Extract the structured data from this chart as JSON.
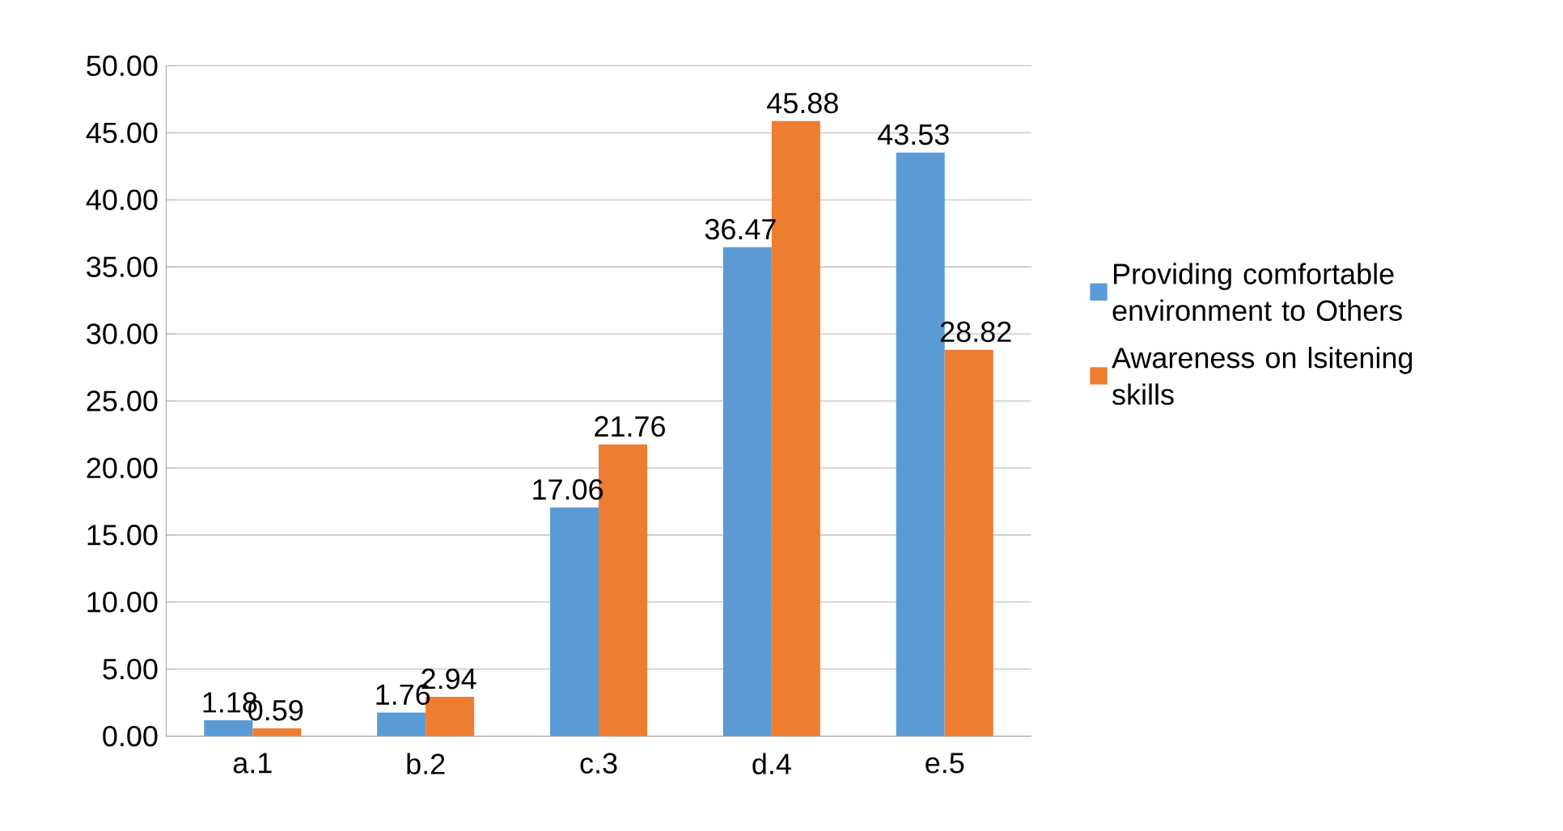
{
  "chart_data": {
    "type": "bar",
    "categories": [
      "a.1",
      "b.2",
      "c.3",
      "d.4",
      "e.5"
    ],
    "series": [
      {
        "name": "Providing comfortable environment to Others",
        "color": "#5b9bd5",
        "values": [
          1.18,
          1.76,
          17.06,
          36.47,
          43.53
        ]
      },
      {
        "name": "Awareness on lsitening skills",
        "color": "#ed7d31",
        "values": [
          0.59,
          2.94,
          21.76,
          45.88,
          28.82
        ]
      }
    ],
    "ylim": [
      0,
      50
    ],
    "yticks": [
      {
        "value": 0,
        "label": "0.00"
      },
      {
        "value": 5,
        "label": "5.00"
      },
      {
        "value": 10,
        "label": "10.00"
      },
      {
        "value": 15,
        "label": "15.00"
      },
      {
        "value": 20,
        "label": "20.00"
      },
      {
        "value": 25,
        "label": "25.00"
      },
      {
        "value": 30,
        "label": "30.00"
      },
      {
        "value": 35,
        "label": "35.00"
      },
      {
        "value": 40,
        "label": "40.00"
      },
      {
        "value": 45,
        "label": "45.00"
      },
      {
        "value": 50,
        "label": "50.00"
      }
    ],
    "grid": "y",
    "legend": "right",
    "data_labels": true
  }
}
